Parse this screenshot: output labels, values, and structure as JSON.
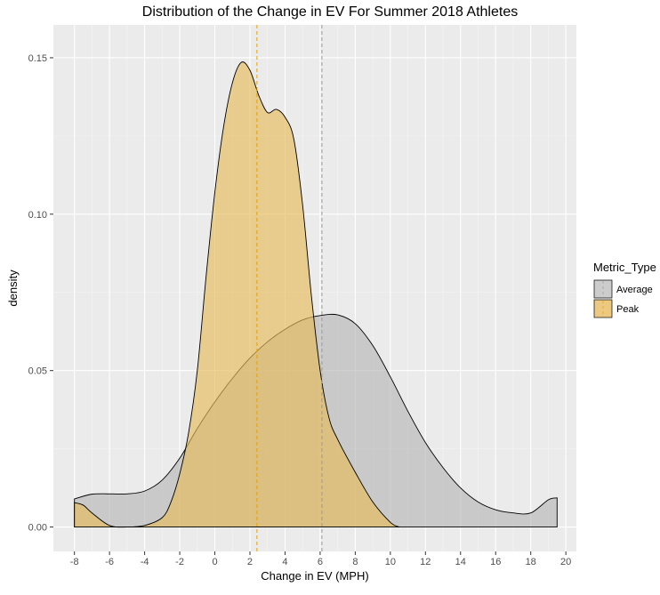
{
  "chart_data": {
    "type": "area",
    "title": "Distribution of the Change in EV For Summer 2018 Athletes",
    "xlabel": "Change in EV (MPH)",
    "ylabel": "density",
    "xlim": [
      -9.2,
      20.6
    ],
    "ylim": [
      -0.0078,
      0.1605
    ],
    "x_ticks": [
      -8,
      -6,
      -4,
      -2,
      0,
      2,
      4,
      6,
      8,
      10,
      12,
      14,
      16,
      18,
      20
    ],
    "x_tick_labels": [
      "-8",
      "-6",
      "-4",
      "-2",
      "0",
      "2",
      "4",
      "6",
      "8",
      "10",
      "12",
      "14",
      "16",
      "18",
      "20"
    ],
    "y_ticks": [
      0,
      0.05,
      0.1,
      0.15
    ],
    "y_tick_labels": [
      "0.00",
      "0.05",
      "0.10",
      "0.15"
    ],
    "grid": true,
    "legend": {
      "title": "Metric_Type",
      "position": "right"
    },
    "series": [
      {
        "name": "Average",
        "color": "#b3b3b3",
        "mean": 6.1,
        "x": [
          -8,
          -7,
          -6,
          -5,
          -4,
          -3,
          -2,
          -1,
          0,
          1,
          2,
          3,
          4,
          5,
          6,
          7,
          8,
          9,
          10,
          11,
          12,
          13,
          14,
          15,
          16,
          17,
          18,
          19,
          19.5
        ],
        "y": [
          0.009,
          0.0105,
          0.0106,
          0.0106,
          0.0115,
          0.015,
          0.022,
          0.0315,
          0.04,
          0.0475,
          0.054,
          0.0592,
          0.0632,
          0.0662,
          0.0676,
          0.0678,
          0.065,
          0.058,
          0.048,
          0.037,
          0.027,
          0.019,
          0.0125,
          0.008,
          0.0055,
          0.0045,
          0.0045,
          0.0087,
          0.0093
        ]
      },
      {
        "name": "Peak",
        "color": "#e6bb5c",
        "mean": 2.4,
        "x": [
          -8,
          -7.5,
          -7,
          -6,
          -5,
          -4,
          -3,
          -2.5,
          -2,
          -1.5,
          -1,
          -0.5,
          0,
          0.5,
          1,
          1.5,
          2,
          2.5,
          3,
          3.5,
          4,
          4.5,
          5,
          5.5,
          6,
          6.5,
          7,
          8,
          9,
          10,
          10.5
        ],
        "y": [
          0.0078,
          0.007,
          0.0045,
          0.0005,
          0.0,
          0.0005,
          0.003,
          0.008,
          0.017,
          0.03,
          0.05,
          0.08,
          0.107,
          0.128,
          0.142,
          0.1485,
          0.146,
          0.138,
          0.1325,
          0.1335,
          0.131,
          0.124,
          0.103,
          0.074,
          0.05,
          0.035,
          0.028,
          0.0175,
          0.008,
          0.0015,
          0.0
        ]
      }
    ]
  }
}
